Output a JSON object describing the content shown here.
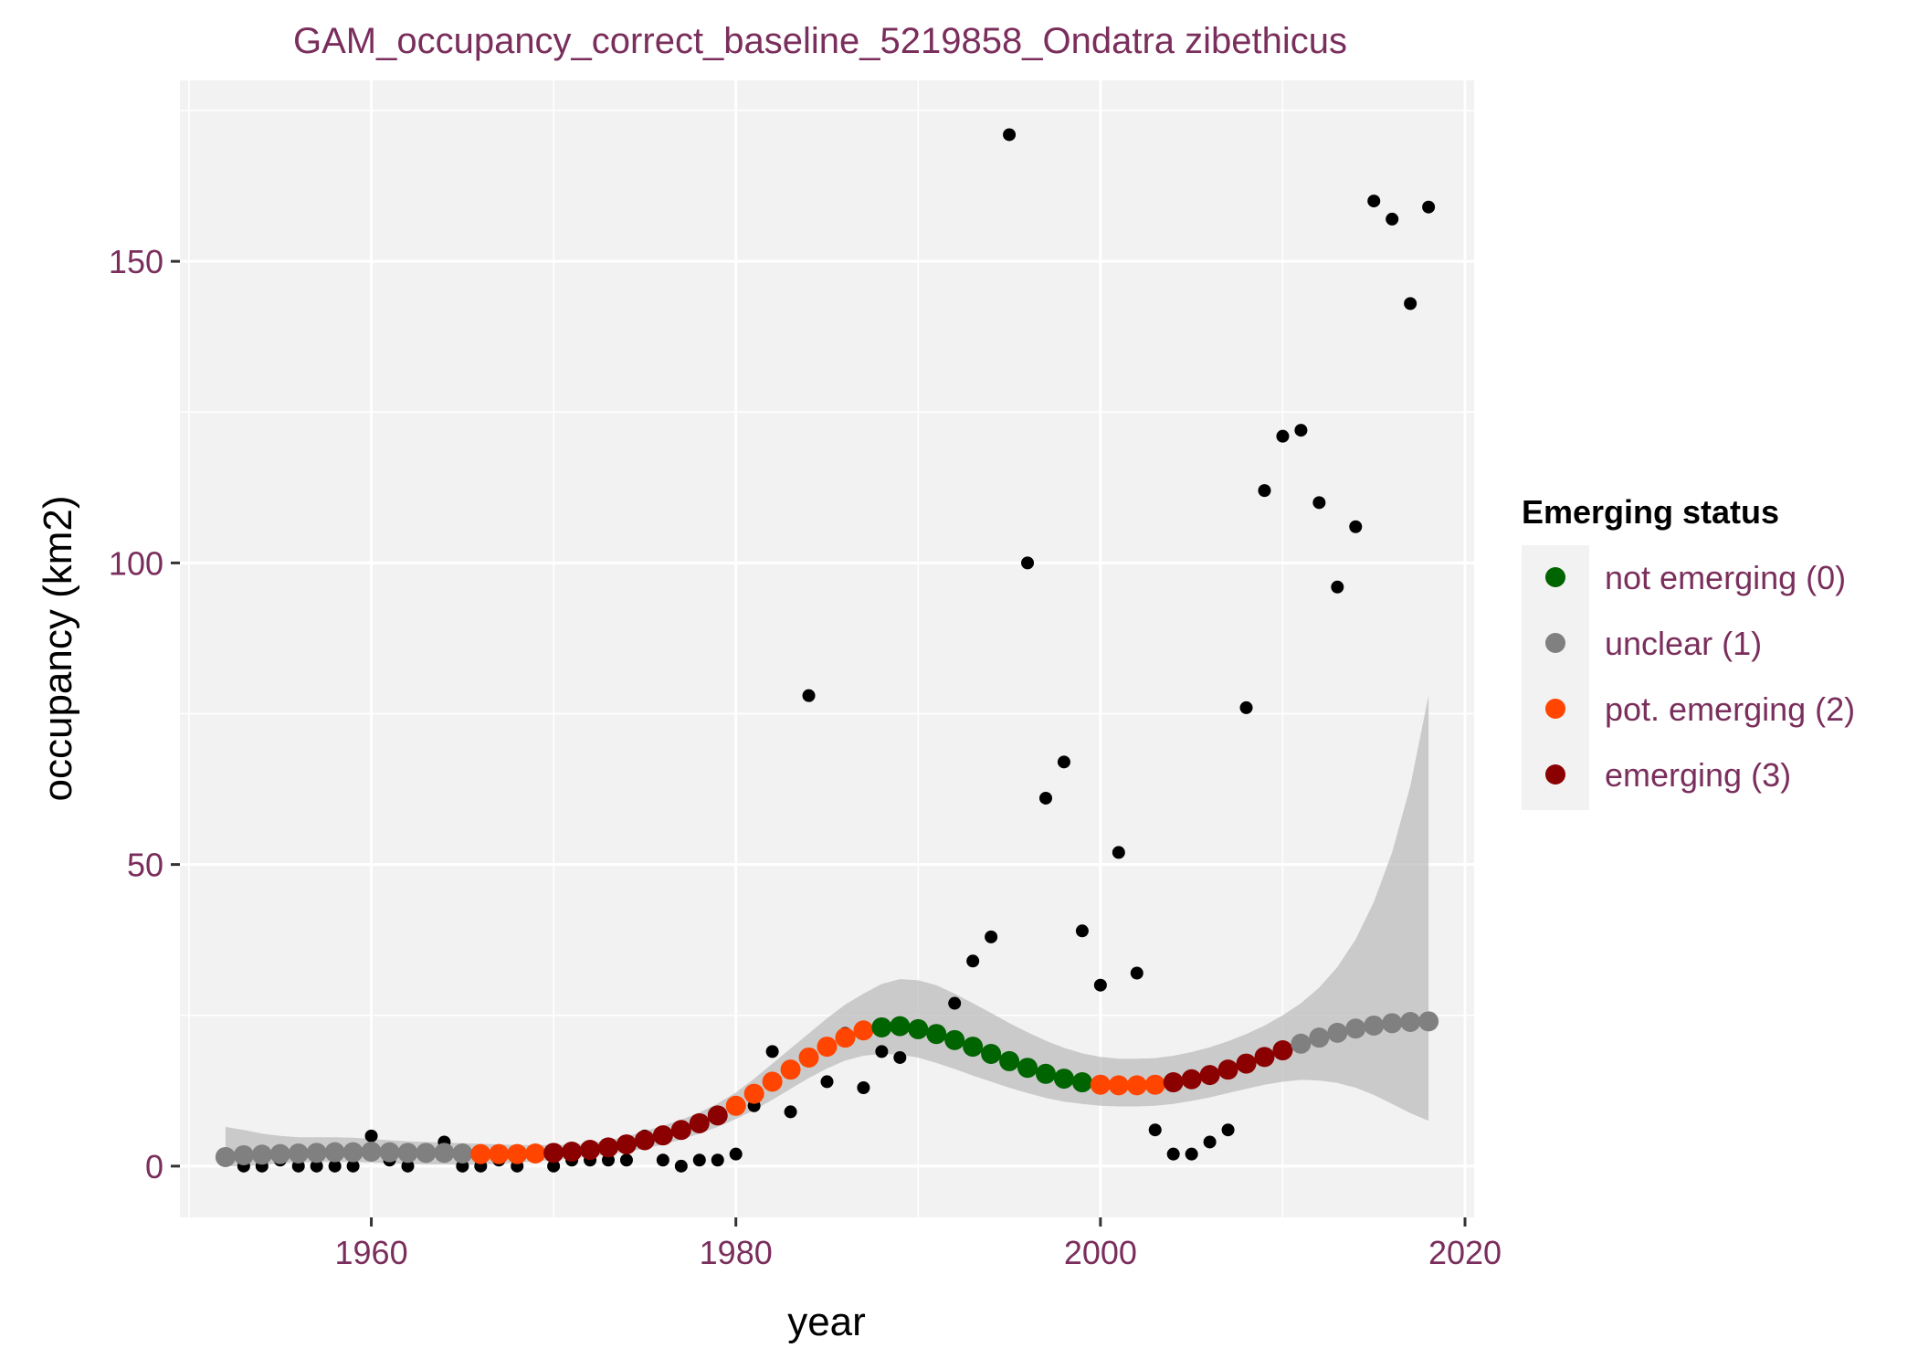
{
  "chart_data": {
    "type": "scatter",
    "title": "GAM_occupancy_correct_baseline_5219858_Ondatra zibethicus",
    "xlabel": "year",
    "ylabel": "occupancy (km2)",
    "xlim": [
      1949.5,
      2020.5
    ],
    "ylim": [
      -8.5,
      180
    ],
    "x_ticks": [
      1960,
      1980,
      2000,
      2020
    ],
    "y_ticks": [
      0,
      50,
      100,
      150
    ],
    "grid": true,
    "panel_background": "#f2f2f2",
    "legend": {
      "title": "Emerging status",
      "position": "right",
      "entries": [
        {
          "label": "not emerging (0)",
          "color": "#006400"
        },
        {
          "label": "unclear (1)",
          "color": "#808080"
        },
        {
          "label": "pot. emerging (2)",
          "color": "#ff4500"
        },
        {
          "label": "emerging (3)",
          "color": "#8b0000"
        }
      ]
    },
    "observed": {
      "color": "#000000",
      "x": [
        1952,
        1953,
        1954,
        1955,
        1956,
        1957,
        1958,
        1959,
        1960,
        1961,
        1962,
        1963,
        1964,
        1965,
        1966,
        1967,
        1968,
        1969,
        1970,
        1971,
        1972,
        1973,
        1974,
        1975,
        1976,
        1977,
        1978,
        1979,
        1980,
        1981,
        1982,
        1983,
        1984,
        1985,
        1986,
        1987,
        1988,
        1989,
        1990,
        1991,
        1992,
        1993,
        1994,
        1995,
        1996,
        1997,
        1998,
        1999,
        2000,
        2001,
        2002,
        2003,
        2004,
        2005,
        2006,
        2007,
        2008,
        2009,
        2010,
        2011,
        2012,
        2013,
        2014,
        2015,
        2016,
        2017,
        2018
      ],
      "y": [
        2,
        0,
        0,
        1,
        0,
        0,
        0,
        0,
        5,
        1,
        0,
        2,
        4,
        0,
        0,
        1,
        0,
        2,
        0,
        1,
        1,
        1,
        1,
        5,
        1,
        0,
        1,
        1,
        2,
        10,
        19,
        9,
        78,
        14,
        22,
        13,
        19,
        18,
        23,
        22,
        27,
        34,
        38,
        171,
        100,
        61,
        67,
        39,
        30,
        52,
        32,
        6,
        2,
        2,
        4,
        6,
        76,
        112,
        121,
        122,
        110,
        96,
        106,
        160,
        157,
        143,
        159
      ]
    },
    "trend": {
      "x": [
        1952,
        1953,
        1954,
        1955,
        1956,
        1957,
        1958,
        1959,
        1960,
        1961,
        1962,
        1963,
        1964,
        1965,
        1966,
        1967,
        1968,
        1969,
        1970,
        1971,
        1972,
        1973,
        1974,
        1975,
        1976,
        1977,
        1978,
        1979,
        1980,
        1981,
        1982,
        1983,
        1984,
        1985,
        1986,
        1987,
        1988,
        1989,
        1990,
        1991,
        1992,
        1993,
        1994,
        1995,
        1996,
        1997,
        1998,
        1999,
        2000,
        2001,
        2002,
        2003,
        2004,
        2005,
        2006,
        2007,
        2008,
        2009,
        2010,
        2011,
        2012,
        2013,
        2014,
        2015,
        2016,
        2017,
        2018
      ],
      "y": [
        1.5,
        1.8,
        1.9,
        2.0,
        2.1,
        2.2,
        2.3,
        2.3,
        2.4,
        2.3,
        2.2,
        2.2,
        2.2,
        2.1,
        2.0,
        2.0,
        2.0,
        2.1,
        2.2,
        2.4,
        2.7,
        3.1,
        3.6,
        4.3,
        5.1,
        6.0,
        7.1,
        8.4,
        10.0,
        12.0,
        14.0,
        16.0,
        18.0,
        19.8,
        21.3,
        22.5,
        23.0,
        23.2,
        22.7,
        21.9,
        20.9,
        19.8,
        18.6,
        17.4,
        16.3,
        15.3,
        14.5,
        13.9,
        13.5,
        13.4,
        13.4,
        13.5,
        13.9,
        14.4,
        15.1,
        16.0,
        17.0,
        18.1,
        19.2,
        20.3,
        21.3,
        22.1,
        22.8,
        23.3,
        23.7,
        23.9,
        24.0
      ],
      "status": [
        1,
        1,
        1,
        1,
        1,
        1,
        1,
        1,
        1,
        1,
        1,
        1,
        1,
        1,
        2,
        2,
        2,
        2,
        3,
        3,
        3,
        3,
        3,
        3,
        3,
        3,
        3,
        3,
        2,
        2,
        2,
        2,
        2,
        2,
        2,
        2,
        0,
        0,
        0,
        0,
        0,
        0,
        0,
        0,
        0,
        0,
        0,
        0,
        2,
        2,
        2,
        2,
        3,
        3,
        3,
        3,
        3,
        3,
        3,
        1,
        1,
        1,
        1,
        1,
        1,
        1,
        1
      ],
      "ci_lower": [
        0,
        0,
        0.2,
        0.5,
        0.6,
        0.7,
        0.7,
        0.7,
        0.6,
        0.5,
        0.4,
        0.3,
        0.3,
        0.2,
        0.3,
        0.4,
        0.6,
        0.8,
        1.0,
        1.3,
        1.6,
        2.0,
        2.4,
        2.9,
        3.6,
        4.4,
        5.4,
        6.5,
        7.8,
        9.3,
        11.0,
        12.8,
        14.6,
        16.2,
        17.5,
        18.3,
        18.6,
        18.5,
        18.0,
        17.1,
        16.1,
        15.0,
        14.0,
        13.0,
        12.1,
        11.3,
        10.7,
        10.3,
        10.0,
        9.9,
        9.9,
        10.0,
        10.3,
        10.8,
        11.4,
        12.1,
        12.8,
        13.5,
        14.0,
        14.3,
        14.2,
        13.8,
        13.0,
        11.8,
        10.3,
        8.8,
        7.5
      ],
      "ci_upper": [
        6.5,
        6.0,
        5.4,
        5.0,
        4.8,
        4.8,
        4.8,
        4.7,
        4.5,
        4.3,
        4.1,
        4.0,
        3.9,
        3.8,
        3.7,
        3.6,
        3.5,
        3.5,
        3.5,
        3.6,
        3.8,
        4.3,
        4.9,
        5.8,
        6.7,
        7.7,
        8.9,
        10.4,
        12.2,
        14.5,
        17.0,
        19.5,
        22.0,
        24.5,
        26.8,
        28.6,
        30.2,
        31.0,
        30.8,
        30.0,
        28.6,
        27.0,
        25.4,
        23.7,
        22.2,
        20.8,
        19.6,
        18.7,
        18.1,
        17.8,
        17.8,
        17.9,
        18.3,
        18.9,
        19.7,
        20.7,
        21.9,
        23.3,
        25.0,
        27.0,
        29.6,
        33.0,
        37.6,
        43.8,
        52.0,
        63.0,
        78.0
      ]
    }
  }
}
